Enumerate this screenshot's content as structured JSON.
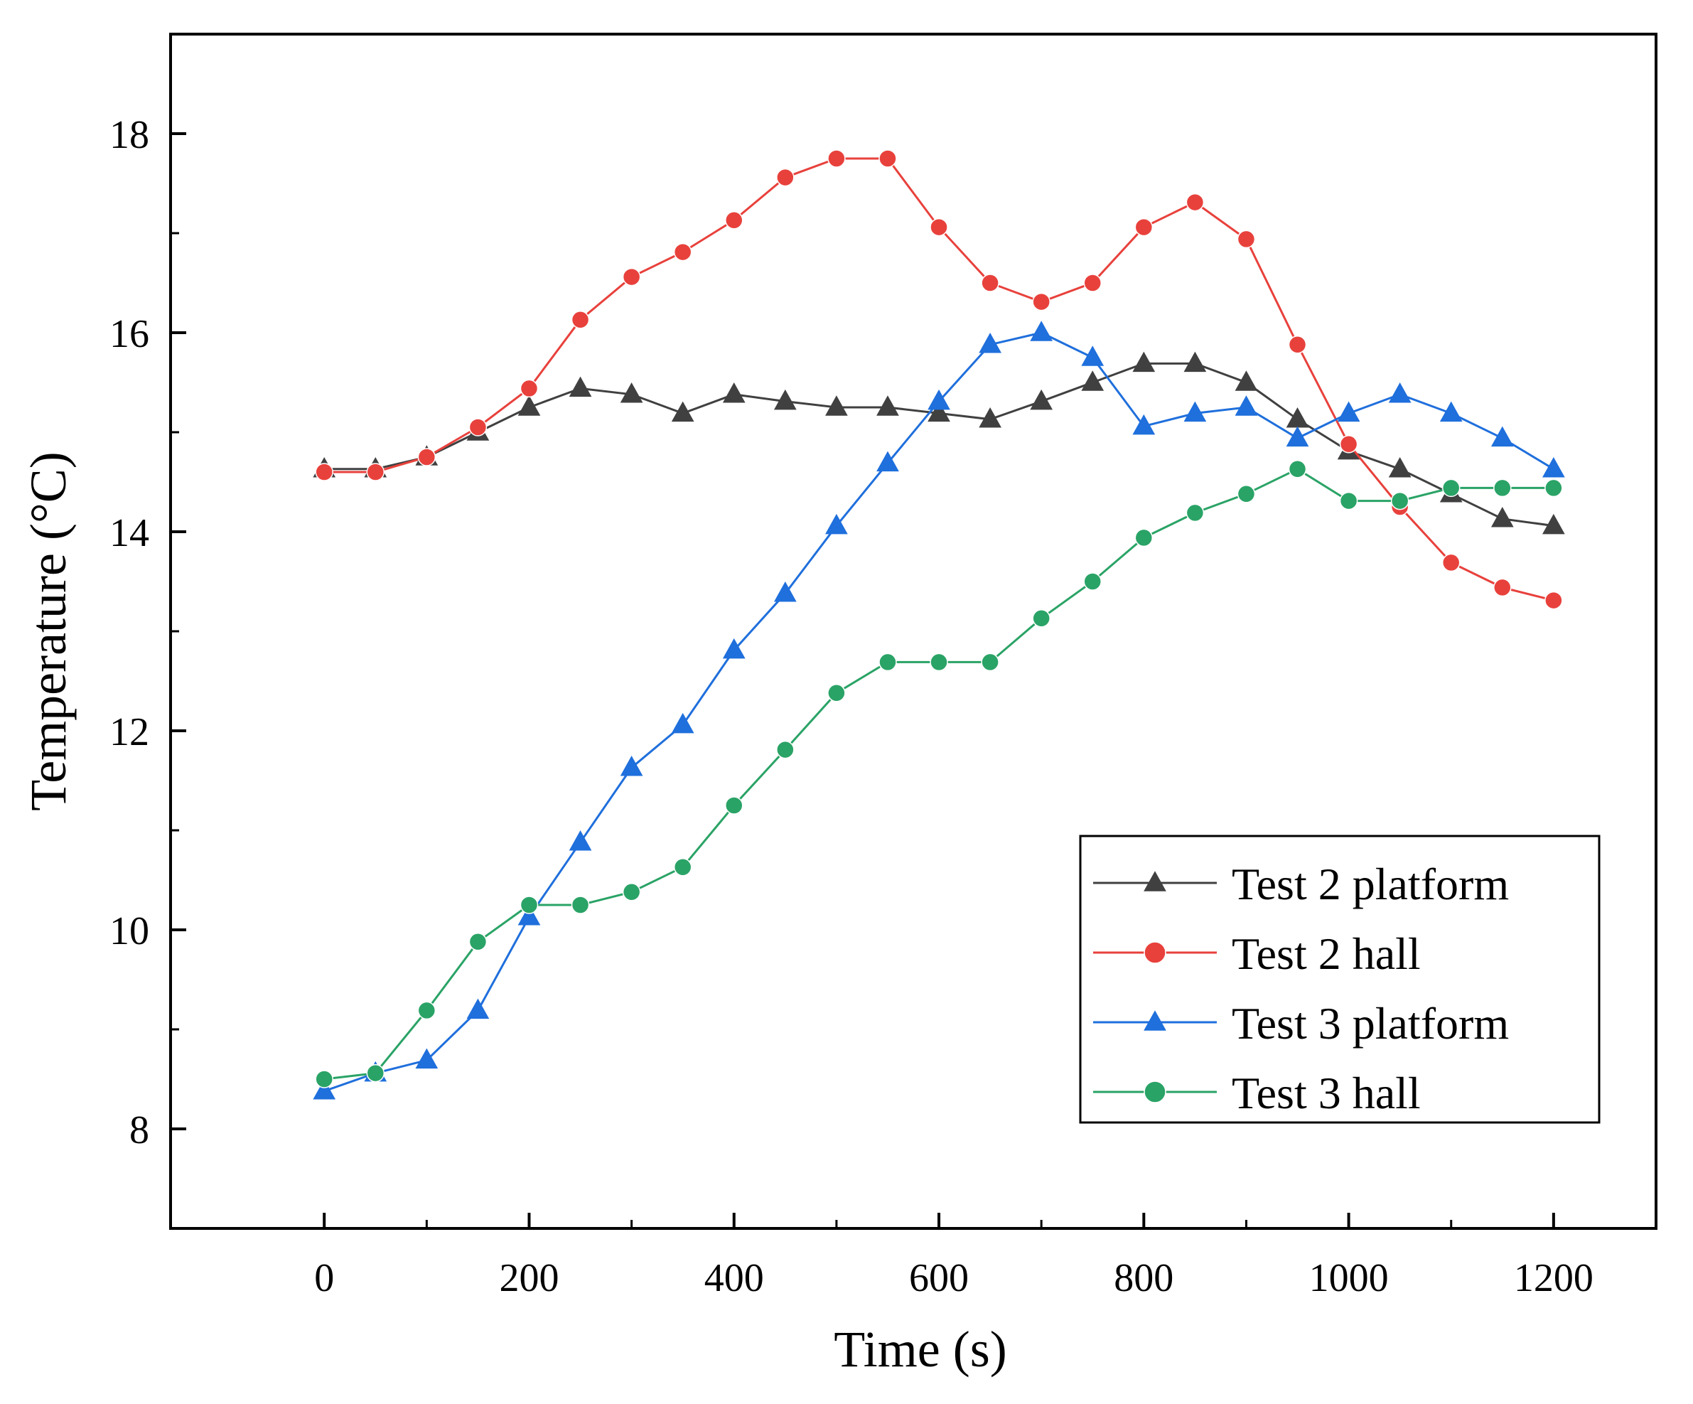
{
  "chart_data": {
    "type": "line",
    "title": "",
    "xlabel": "Time (s)",
    "ylabel": "Temperature (°C)",
    "xlim": [
      -150,
      1300
    ],
    "ylim": [
      7,
      19
    ],
    "xticks": [
      0,
      200,
      400,
      600,
      800,
      1000,
      1200
    ],
    "xtick_labels": [
      "0",
      "200",
      "400",
      "600",
      "800",
      "1000",
      "1200"
    ],
    "yticks": [
      8,
      10,
      12,
      14,
      16,
      18
    ],
    "ytick_labels": [
      "8",
      "10",
      "12",
      "14",
      "16",
      "18"
    ],
    "grid": false,
    "legend_position": "lower-right",
    "x": [
      0,
      50,
      100,
      150,
      200,
      250,
      300,
      350,
      400,
      450,
      500,
      550,
      600,
      650,
      700,
      750,
      800,
      850,
      900,
      950,
      1000,
      1050,
      1100,
      1150,
      1200
    ],
    "series": [
      {
        "name": "Test 2 platform",
        "color": "#404040",
        "marker": "triangle",
        "values": [
          14.63,
          14.63,
          14.75,
          15.0,
          15.25,
          15.44,
          15.38,
          15.19,
          15.38,
          15.31,
          15.25,
          15.25,
          15.19,
          15.13,
          15.31,
          15.5,
          15.69,
          15.69,
          15.5,
          15.13,
          14.81,
          14.63,
          14.38,
          14.13,
          14.06
        ]
      },
      {
        "name": "Test 2 hall",
        "color": "#e8413c",
        "marker": "circle",
        "values": [
          14.6,
          14.6,
          14.75,
          15.05,
          15.44,
          16.13,
          16.56,
          16.81,
          17.13,
          17.56,
          17.75,
          17.75,
          17.06,
          16.5,
          16.31,
          16.5,
          17.06,
          17.31,
          16.94,
          15.88,
          14.88,
          14.25,
          13.69,
          13.44,
          13.31
        ]
      },
      {
        "name": "Test 3 platform",
        "color": "#1f6fdc",
        "marker": "triangle",
        "values": [
          8.38,
          8.56,
          8.69,
          9.19,
          10.13,
          10.88,
          11.63,
          12.06,
          12.81,
          13.38,
          14.06,
          14.69,
          15.31,
          15.88,
          16.0,
          15.75,
          15.06,
          15.19,
          15.25,
          14.94,
          15.19,
          15.38,
          15.19,
          14.94,
          14.63
        ]
      },
      {
        "name": "Test 3 hall",
        "color": "#2aa366",
        "marker": "circle",
        "values": [
          8.5,
          8.56,
          9.19,
          9.88,
          10.25,
          10.25,
          10.38,
          10.63,
          11.25,
          11.81,
          12.38,
          12.69,
          12.69,
          12.69,
          13.13,
          13.5,
          13.94,
          14.19,
          14.38,
          14.63,
          14.31,
          14.31,
          14.44,
          14.44,
          14.44
        ]
      }
    ]
  }
}
